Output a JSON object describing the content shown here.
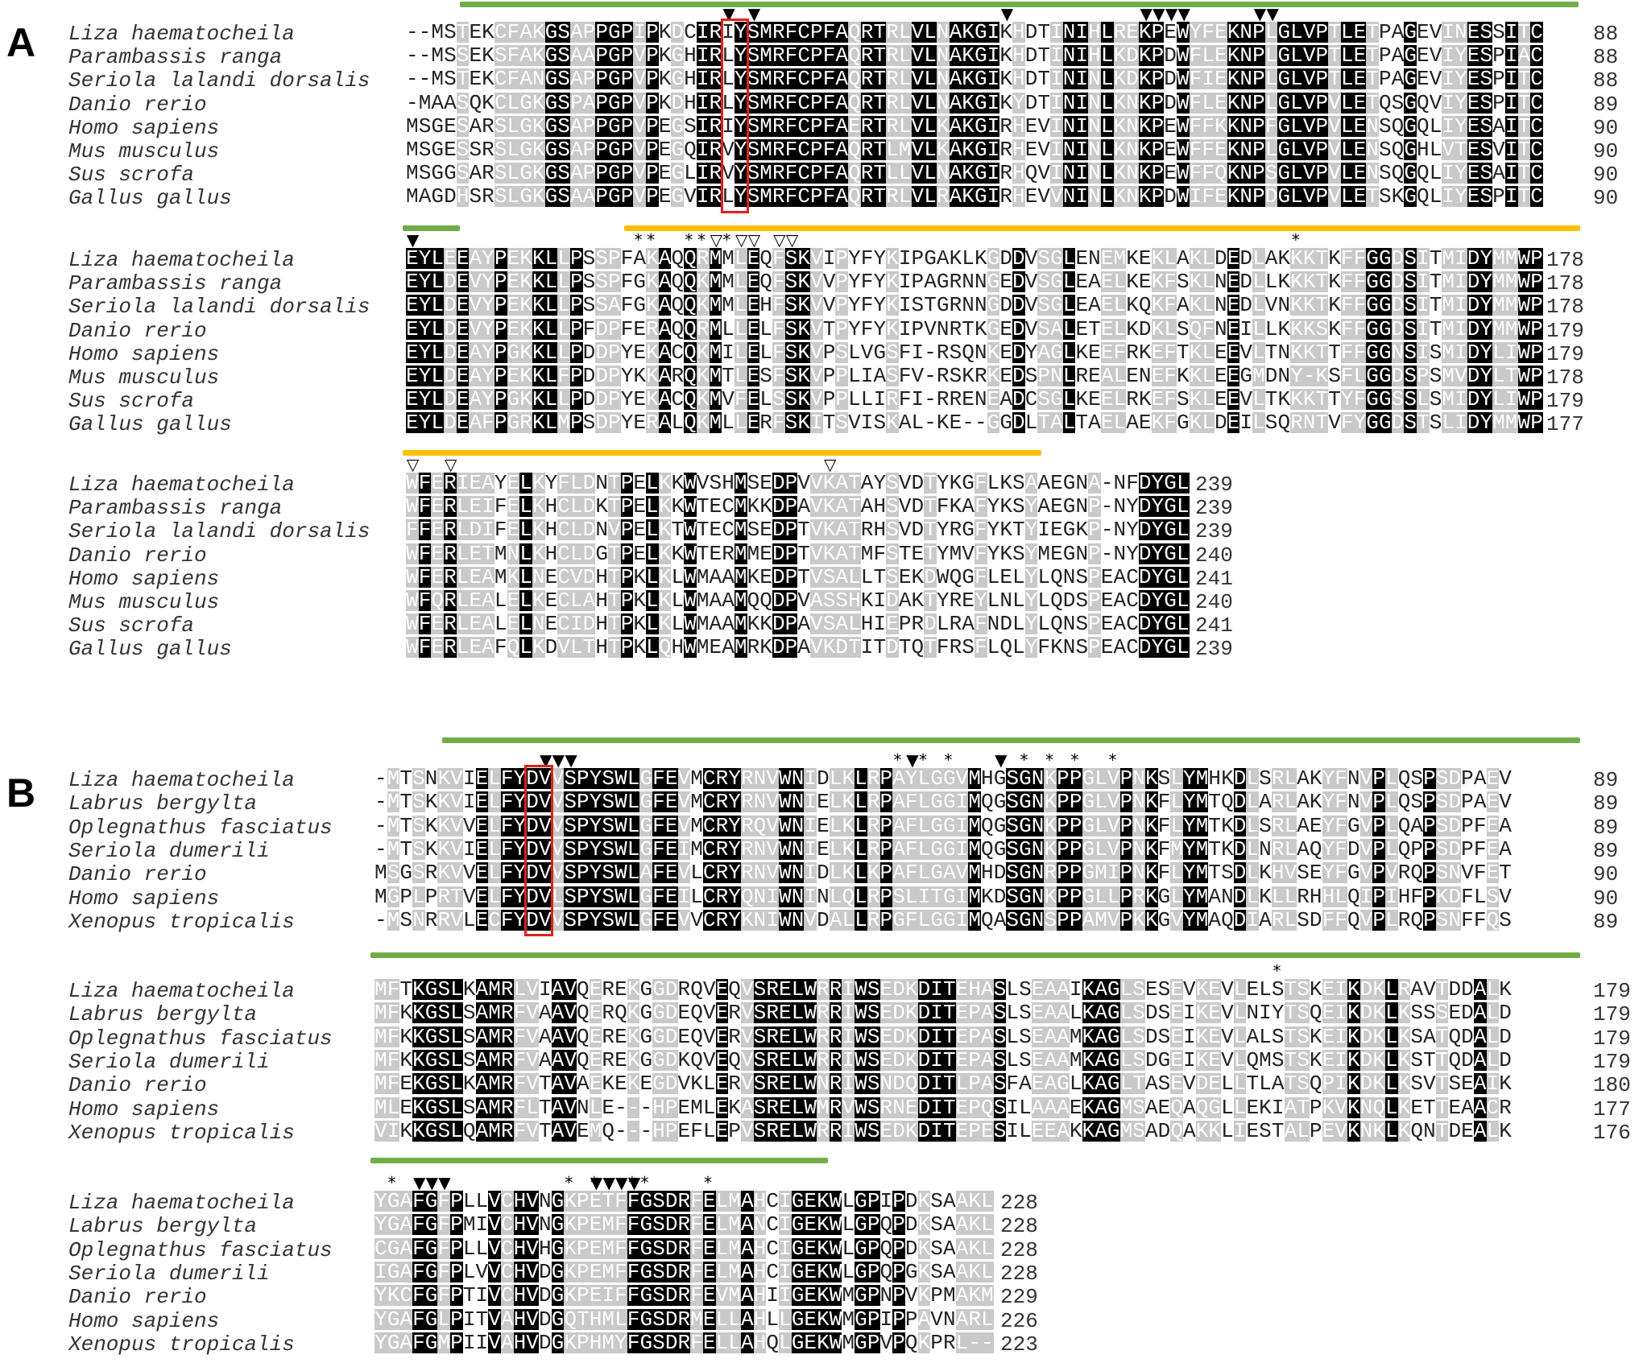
{
  "figure": {
    "panels": [
      {
        "label": "A",
        "species": [
          "Liza haematocheila",
          "Parambassis ranga",
          "Seriola lalandi dorsalis",
          "Danio rerio",
          "Homo sapiens",
          "Mus musculus",
          "Sus scrofa",
          "Gallus gallus"
        ],
        "blocks": [
          {
            "rows": [
              "--MSTEKCFAKGSAPPGPIPKDCIRIYSMRFCPFAQRTRLVLNAKGIKHDTINIHLREKPEWYFEKNPLGLVPTLETPAGEVINESSITC",
              "--MSSEKSFAKGSAAPGPVPKGHIRLYSMRFCPFAQRTRLVLNAKGIKHDTINIHLKDKPDWFLEKNPLGLVPTLETPAGEVIYESPIAC",
              "--MSTEKCFANGSAPPGPVPKGHIRLYSMRFCPFAQRTRLVLNAKGIKHDTININLKDKPDWFIEKNPLGLVPTLETPAGEVIYESPITC",
              "-MAASQKCLGKGSPAPGPVPKDHIRLYSMRFCPFAQRTRLVLNAKGIKYDTININLKNKPDWFLEKNPLGLVPVLETQSGQVIYESPITC",
              "MSGESARSLGKGSAPPGPVPEGSIRIYSMRFCPFAERTRLVLKAKGIRHEVININLKNKPEWFFKKNPFGLVPVLENSQGQLIYESAITC",
              "MSGESSRSLGKGSAPPGPVPEGQIRVYSMRFCPFAQRTLMVLKAKGIRHEVININLKNKPEWFFEKNPLGLVPVLENSQGHLVTESVITC",
              "MSGGSARSLGKGSAPPGPVPEGLIRVYSMRFCPFAQRTLLVLNAKGIRHQVININLKNKPEWFFQKNPSGLVPVLENSQGQLIYESAITC",
              "MAGDHSRSLGKGSAAPGPVPEGVIRLYSMRFCPFAQRTRLVLRAKGIRHEVVNINLKNKPDWIFEKNPDGLVPVLETSKGQLIYESPITC"
            ],
            "numbers": [
              "88",
              "88",
              "88",
              "89",
              "90",
              "90",
              "90",
              "90"
            ]
          },
          {
            "rows": [
              "EYLEEAYPEKKLLPSSPFAKAQQRMMLEQFSKVIPYFYKIPGAKLKGDDVSGLENEMKEKLAKLDEDLAKKKTKFFGGDSITMIDYMMWP",
              "EYLDEVYPEKKLLPSSPFGKAQQKMMLEQFSKVVPYFYKIPAGRNNGEDVSGLEAELKEKFSKLNEDLLKKKTKFFGGDSITMIDYMMWP",
              "EYLDEVYPEKKLLPSSAFGKAQQKMMLEHFSKVVPYFYKISTGRNNGDDVSGLEAELKQKFAKLNEDLVNKKTKFFGGDSITMIDYMMWP",
              "EYLDEVYPEKKLLPFDPFERAQQRMLLELFSKVTPYFYKIPVNRTKGEDVSALETELKDKLSQFNEILLKKKSKFFGGDSITMIDYMMWP",
              "EYLDEAYPGKKLLPDDPYEKACQKMILELFSKVPSLVGSFI-RSQNKEDYAGLKEEFRKEFTKLEEVLTNKKTTFFGGNSISMIDYLIWP",
              "EYLDEAYPEKKLFPDDPYKKARQKMTLESFSKVPPLIASFV-RSKRKEDSPNLREALENEFKKLEEGMDNY-KSFLGGDSPSMVDYLTWP",
              "EYLDEAYPGKKLLPDDPYEKACQKMVFELSSKVPPLLIRFI-RRENEADCSGLKEELRKEFSKLEEVLTKKKTTYFGGSSLSMIDYLIWP",
              "EYLDEAFPGRKLMPSDPYERALQKMLLERFSKITSVISKAL-KE--GGDLTALTAELAEKFGKLDEILSQRNTVFYGGDSTSLIDYMMWP"
            ],
            "numbers": [
              "178",
              "178",
              "178",
              "179",
              "179",
              "178",
              "179",
              "177"
            ]
          },
          {
            "rows": [
              "WFERIEAYELKYFLDNTPELKKWVSHMSEDPVVKATAYSVDTYKGFLKSAAEGNA-NFDYGL",
              "WFERLEIFELKHCLDKTPELKKWTECMKKDPAVKATAHSVDTFKAFYKSYAEGNP-NYDYGL",
              "FFERLDIFELKHCLDNVPELKTWTECMSEDPTVKATRHSVDTYRGFYKTYIEGKP-NYDYGL",
              "WFERLETMNLKHCLDGTPELKKWTERMMEDPTVKATMFSTETYMVFYKSYMEGNP-NYDYGL",
              "WFERLEAMKLNECVDHTPKLKLWMAAMKEDPTVSALLTSEKDWQGFLELYLQNSPEACDYGL",
              "WFQRLEALELKECLAHTPKLKLWMAAMQQDPVASSHKIDAKTYREYLNLYLQDSPEACDYGL",
              "WFERLEALELNECIDHTPKLKLWMAAMKKDPAVSALHIEPRDLRAFNDLYLQNSPEACDYGL",
              "WFERLEAFQLKDVLTHTPKLQHWMEAMRKDPAVKDTITDTQTFRSFLQLYFKNSPEACDYGL"
            ],
            "numbers": [
              "239",
              "239",
              "239",
              "240",
              "241",
              "240",
              "241",
              "239"
            ]
          }
        ]
      },
      {
        "label": "B",
        "species": [
          "Liza haematocheila",
          "Labrus bergylta",
          "Oplegnathus fasciatus",
          "Seriola dumerili",
          "Danio rerio",
          "Homo sapiens",
          "Xenopus tropicalis"
        ],
        "blocks": [
          {
            "rows": [
              "-MTSNKVIELFYDVVSPYSWLGFEVMCRYRNVWNIDLKLRPAYLGGVMHGSGNKPPGLVPNKSLYMHKDLSRLAKYFNVPLQSPSDPAEV",
              "-MTSKKVIELFYDVVSPYSWLGFEVMCRYRNVWNIELKLRPAFLGGIMQGSGNKPPGLVPNKFLYMTQDLARLAKYFNVPLQSPSDPAEV",
              "-MTSKKVVELFYDVVSPYSWLGFEVMCRYRQVWNIELKLRPAFLGGIMQGSGNKPPGLVPNKFLYMTKDLSRLAEYFGVPLQAPSDPFEA",
              "-MTSKKVIELFYDVVSPYSWLGFEIMCRYRNVWNIELKLRPAFLGGIMQGSGNKPPGLVPNKFMYMTKDLNRLAQYFDVPLQPPSDPFEA",
              "MSGSRKVVELFYDVVSPYSWLAFEVLCRYRNVWNIDLKLKPAFLGAVMHDSGNRPPGMIPNKFLYMTSDLKHVSEYFGVPVRQPSNVFET",
              "MGPLPRTVELFYDVLSPYSWLGFEILCRYQNIWNINLQLRPSLITGIMKDSGNKPPGLLPRKGLYMANDLKLLRHHLQIPIHFPKDFLSV",
              "-MSNRRVLECFYDVVSPYSWLGFEVVCRYKNIWNVDALLRPGFLGGIMQASGNSPPAMVPKKGVYMAQDIARLSDFFQVPLRQPSNFFQS"
            ],
            "numbers": [
              "89",
              "89",
              "89",
              "89",
              "90",
              "90",
              "89"
            ]
          },
          {
            "rows": [
              "MFTKGSLKAMRLVIAVQEREKGGDRQVEQVSRELWRRIWSEDKDITEHASLSEAAIKAGLSESEVKEVLELSTSKEIKDKLRAVTDDALK",
              "MFKKGSLSAMRFVAAVQERQKGGDEQVERVSRELWRRIWSEDKDITEPASLSEAALKAGLSDSEIKEVLNIYTSQEIKDKLKSSSEDALD",
              "MFKKGSLSAMRFVAAVQEREKGGDEQVERVSRELWRRIWSEDKDITEPASLSEAAMKAGLSDSEIKEVLALSTSKEIKDKLKSATQDALD",
              "MFKKGSLSAMRFVAAVQEREKGGDKQVEQVSRELWRRIWSEDKDITEPASLSEAAMKAGLSDGEIKEVLQMSTSKEIKDKLKSTTQDALD",
              "MFEKGSLKAMRFVTAVAEKEKEGDVKLERVSRELWNRIWSNDQDITLPASFAEAGLKAGLTASEVDELLTLATSQPIKDKLKSVTSEAIK",
              "MLEKGSLSAMRFLTAVNLE---HPEMLEKASRELWMRVWSRNEDITEPQSILAAAEKAGMSAEQAQGLLEKIATPKVKNQLKETTEAACR",
              "VIKKGSLQAMRFVTAVEMQ---HPEFLEPVSRELWRRIWSEDKDITEPESILEEAKKAGMSADQAKKLIESTALPEVKNKLKQNTDEALK"
            ],
            "numbers": [
              "179",
              "179",
              "179",
              "179",
              "180",
              "177",
              "176"
            ]
          },
          {
            "rows": [
              "YGAFGFPLLVCHVNGKPETFFGSDRFELMAHCIGEKWLGPIPDKSAAKL",
              "YGAFGFPMIVCHVNGKPEMFFGSDRFELMANCIGEKWLGPQPDKSAAKL",
              "CGAFGFPLLVCHVHGKPEMFFGSDRFELMAHCIGEKWLGPQPDKSAAKL",
              "IGAFGFPLVVCHVDGKPEMFFGSDRFELMAHCIGEKWLGPQPGKSAAKL",
              "YKCFGFPTIVCHVDGKPEIFFGSDRFEVMAHIIGEKWMGPNPVKPMAKM",
              "YGAFGLPITVAHVDGQTHMLFGSDRMELLAHLLGEKWMGPIPPAVNARL",
              "YGAFGMPIIVAHVDGKPHMYFGSDRFELLAHQLGEKWMGPVPQKPRL--"
            ],
            "numbers": [
              "228",
              "228",
              "228",
              "228",
              "229",
              "226",
              "223"
            ]
          }
        ]
      }
    ]
  }
}
